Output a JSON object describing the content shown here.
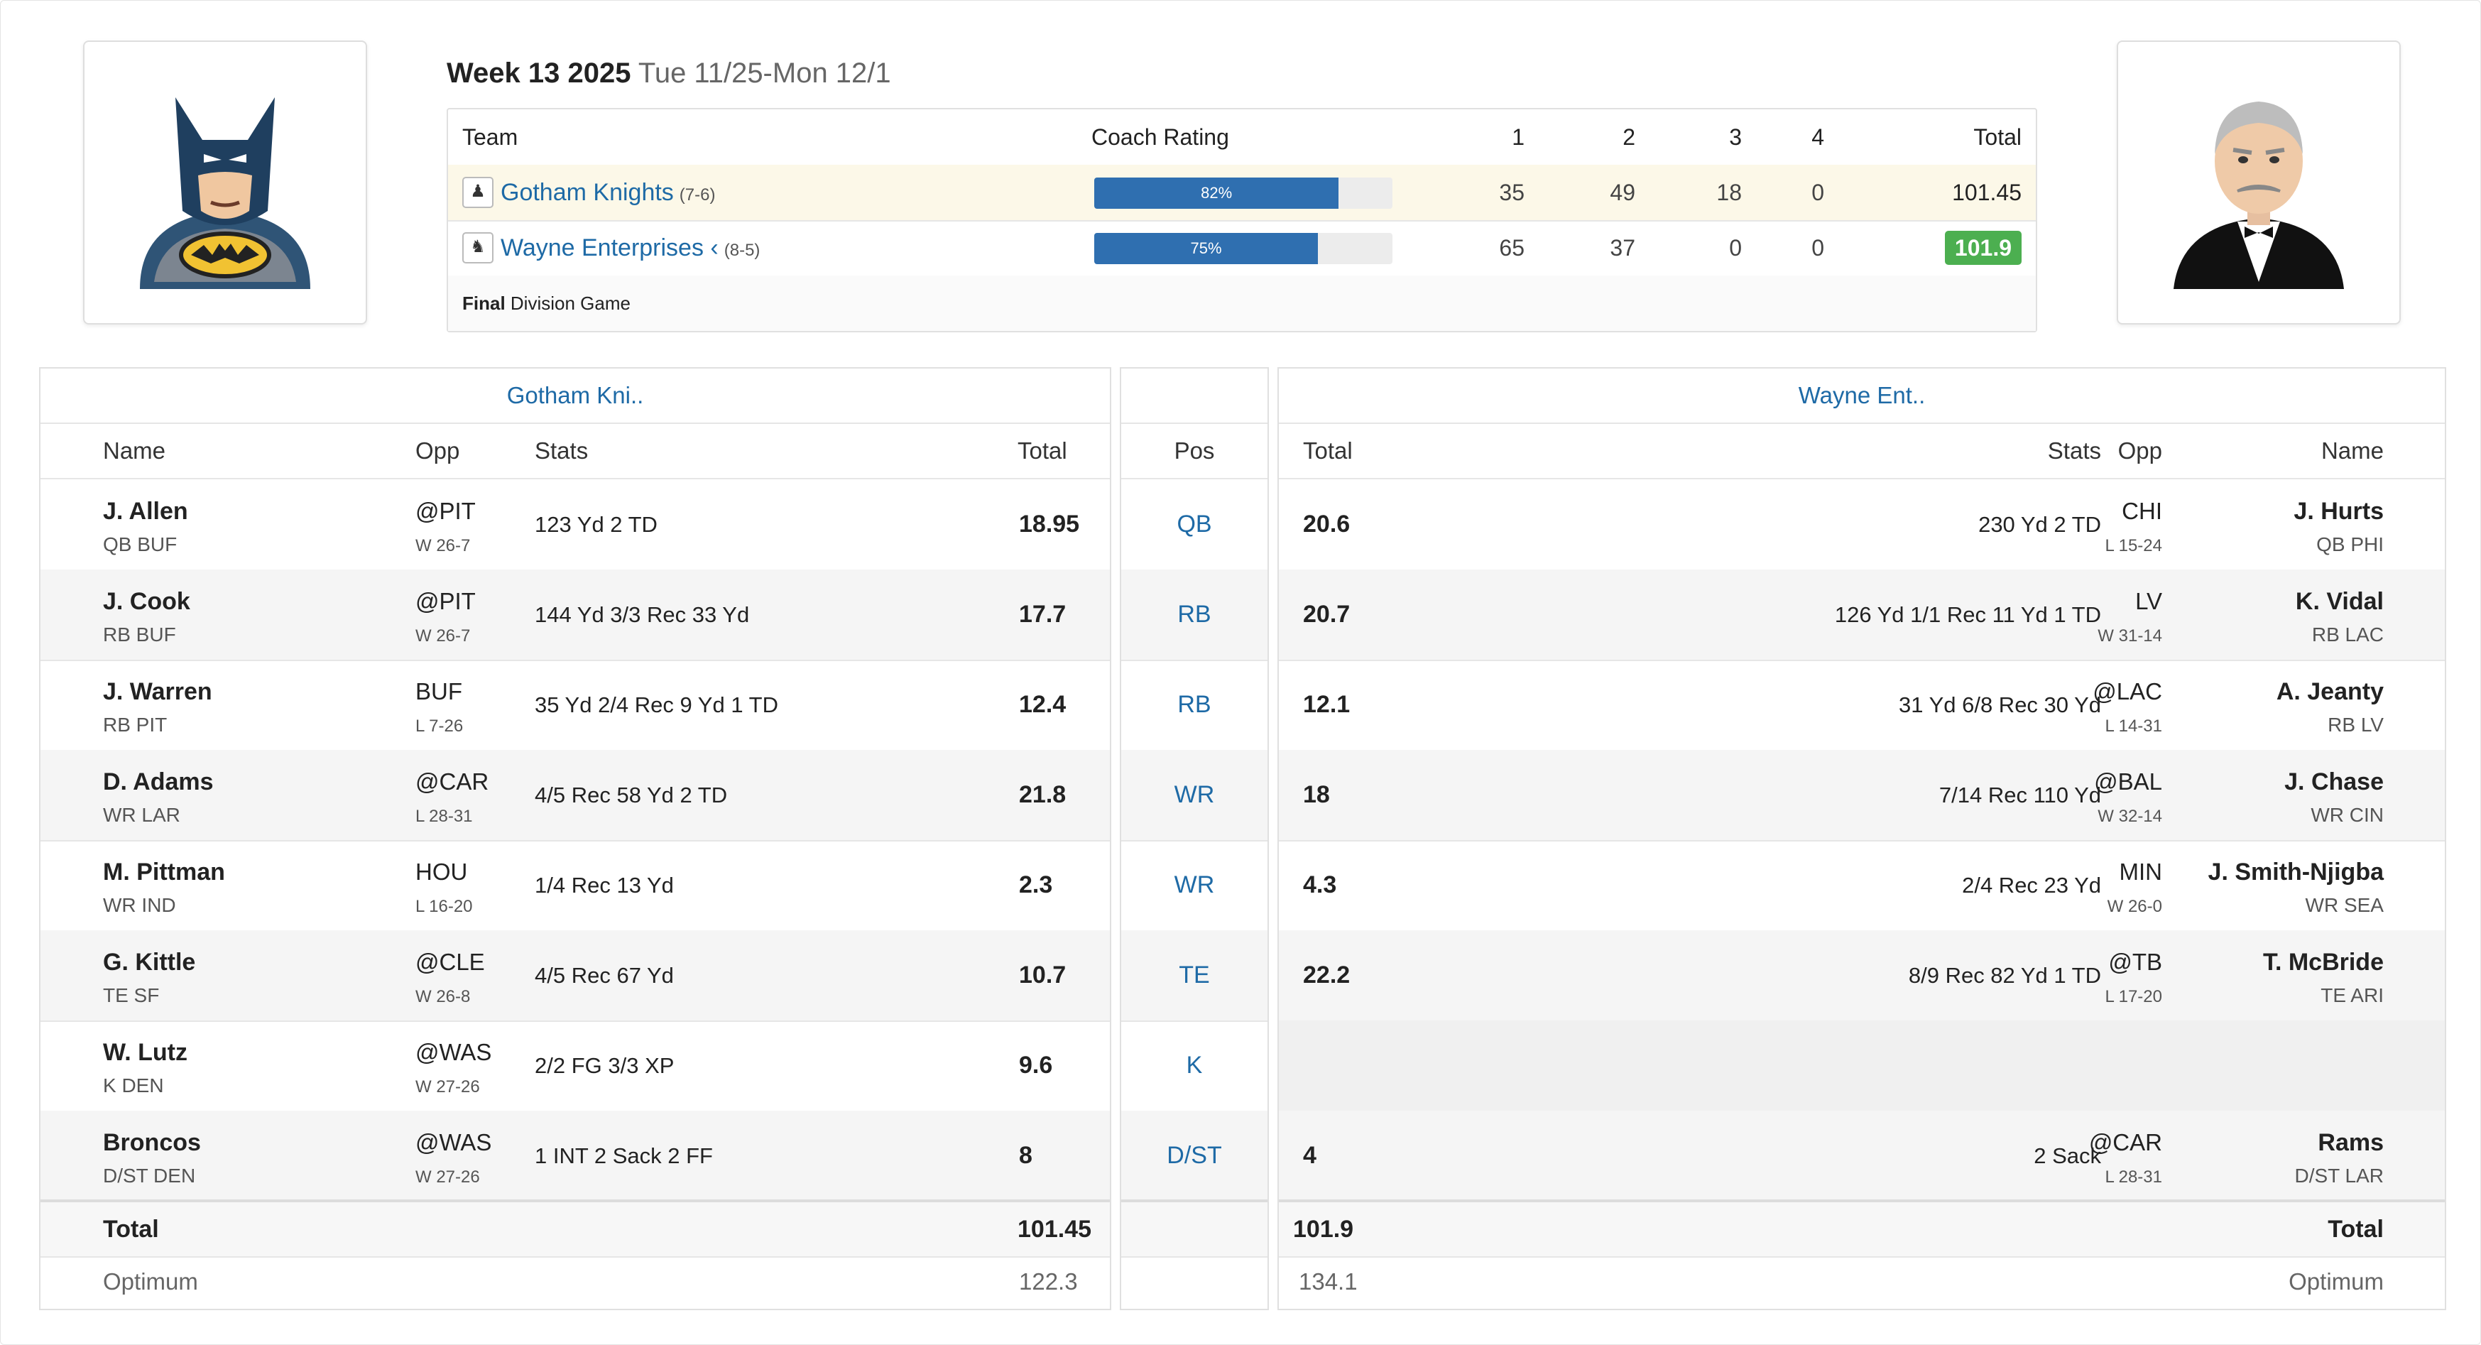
{
  "header": {
    "week": "Week 13 2025",
    "dates": "Tue 11/25-Mon 12/1"
  },
  "matchup": {
    "columns": [
      "Team",
      "Coach Rating",
      "1",
      "2",
      "3",
      "4",
      "Total"
    ],
    "teams": [
      {
        "name": "Gotham Knights",
        "record": "(7-6)",
        "rating": "82%",
        "rating_value": 0.82,
        "q": [
          "35",
          "49",
          "18",
          "0"
        ],
        "total": "101.45",
        "winner": false
      },
      {
        "name": "Wayne Enterprises ‹",
        "record": "(8-5)",
        "rating": "75%",
        "rating_value": 0.75,
        "q": [
          "65",
          "37",
          "0",
          "0"
        ],
        "total": "101.9",
        "winner": true
      }
    ],
    "status": "Final",
    "game_type": "Division Game"
  },
  "left": {
    "title": "Gotham Kni..",
    "headers": {
      "name": "Name",
      "opp": "Opp",
      "stats": "Stats",
      "total": "Total"
    },
    "players": [
      {
        "name": "J. Allen",
        "pos": "QB BUF",
        "opp": "@PIT",
        "result": "W 26-7",
        "stats": "123 Yd 2 TD",
        "total": "18.95"
      },
      {
        "name": "J. Cook",
        "pos": "RB BUF",
        "opp": "@PIT",
        "result": "W 26-7",
        "stats": "144 Yd 3/3 Rec 33 Yd",
        "total": "17.7"
      },
      {
        "name": "J. Warren",
        "pos": "RB PIT",
        "opp": "BUF",
        "result": "L 7-26",
        "stats": "35 Yd 2/4 Rec 9 Yd 1 TD",
        "total": "12.4"
      },
      {
        "name": "D. Adams",
        "pos": "WR LAR",
        "opp": "@CAR",
        "result": "L 28-31",
        "stats": "4/5 Rec 58 Yd 2 TD",
        "total": "21.8"
      },
      {
        "name": "M. Pittman",
        "pos": "WR IND",
        "opp": "HOU",
        "result": "L 16-20",
        "stats": "1/4 Rec 13 Yd",
        "total": "2.3"
      },
      {
        "name": "G. Kittle",
        "pos": "TE SF",
        "opp": "@CLE",
        "result": "W 26-8",
        "stats": "4/5 Rec 67 Yd",
        "total": "10.7"
      },
      {
        "name": "W. Lutz",
        "pos": "K DEN",
        "opp": "@WAS",
        "result": "W 27-26",
        "stats": "2/2 FG 3/3 XP",
        "total": "9.6"
      },
      {
        "name": "Broncos",
        "pos": "D/ST DEN",
        "opp": "@WAS",
        "result": "W 27-26",
        "stats": "1 INT 2 Sack 2 FF",
        "total": "8"
      }
    ],
    "total_label": "Total",
    "total": "101.45",
    "optimum_label": "Optimum",
    "optimum": "122.3"
  },
  "positions": {
    "header": "Pos",
    "list": [
      "QB",
      "RB",
      "RB",
      "WR",
      "WR",
      "TE",
      "K",
      "D/ST"
    ]
  },
  "right": {
    "title": "Wayne Ent..",
    "headers": {
      "total": "Total",
      "stats": "Stats",
      "opp": "Opp",
      "name": "Name"
    },
    "players": [
      {
        "name": "J. Hurts",
        "pos": "QB PHI",
        "opp": "CHI",
        "result": "L 15-24",
        "stats": "230 Yd 2 TD",
        "total": "20.6"
      },
      {
        "name": "K. Vidal",
        "pos": "RB LAC",
        "opp": "LV",
        "result": "W 31-14",
        "stats": "126 Yd 1/1 Rec 11 Yd 1 TD",
        "total": "20.7"
      },
      {
        "name": "A. Jeanty",
        "pos": "RB LV",
        "opp": "@LAC",
        "result": "L 14-31",
        "stats": "31 Yd 6/8 Rec 30 Yd",
        "total": "12.1"
      },
      {
        "name": "J. Chase",
        "pos": "WR CIN",
        "opp": "@BAL",
        "result": "W 32-14",
        "stats": "7/14 Rec 110 Yd",
        "total": "18"
      },
      {
        "name": "J. Smith-Njigba",
        "pos": "WR SEA",
        "opp": "MIN",
        "result": "W 26-0",
        "stats": "2/4 Rec 23 Yd",
        "total": "4.3"
      },
      {
        "name": "T. McBride",
        "pos": "TE ARI",
        "opp": "@TB",
        "result": "L 17-20",
        "stats": "8/9 Rec 82 Yd 1 TD",
        "total": "22.2"
      },
      {
        "name": "",
        "pos": "",
        "opp": "",
        "result": "",
        "stats": "",
        "total": ""
      },
      {
        "name": "Rams",
        "pos": "D/ST LAR",
        "opp": "@CAR",
        "result": "L 28-31",
        "stats": "2 Sack",
        "total": "4"
      }
    ],
    "total_label": "Total",
    "total": "101.9",
    "optimum_label": "Optimum",
    "optimum": "134.1"
  },
  "colors": {
    "link": "#1e6aa6",
    "bar": "#2f6fb0",
    "winner_badge": "#4caf50",
    "highlight_row": "#fcf8e8"
  },
  "icons": {
    "left_avatar": "batman-avatar",
    "right_avatar": "butler-avatar",
    "team_icon": "team-logo-icon"
  }
}
